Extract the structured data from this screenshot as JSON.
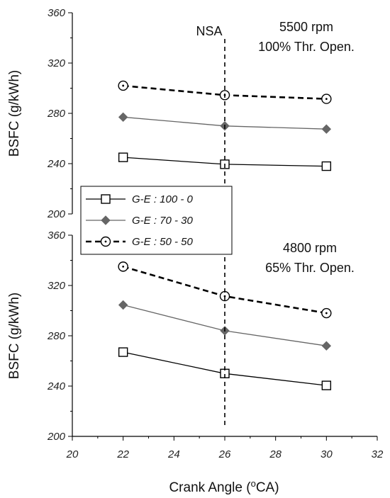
{
  "chart_data": [
    {
      "type": "line",
      "panel": "top",
      "annotation_lines": [
        "5500 rpm",
        "100% Thr. Open."
      ],
      "ylabel": "BSFC (g/kWh)",
      "ylim": [
        200,
        360
      ],
      "yticks": [
        200,
        240,
        280,
        320,
        360
      ],
      "xlim": [
        20,
        32
      ],
      "x": [
        22,
        26,
        30
      ],
      "series": [
        {
          "name": "G-E : 100 - 0",
          "values": [
            245,
            239.5,
            238
          ],
          "color": "#000000",
          "marker": "open-square",
          "line": "solid-thin"
        },
        {
          "name": "G-E : 70 - 30",
          "values": [
            277,
            270,
            267.5
          ],
          "color": "#666666",
          "marker": "filled-diamond",
          "line": "solid-thin"
        },
        {
          "name": "G-E : 50 - 50",
          "values": [
            302,
            294.5,
            291.5
          ],
          "color": "#000000",
          "marker": "open-circle-dot",
          "line": "dashed-thick"
        }
      ],
      "vline": {
        "x": 26,
        "label": "NSA"
      }
    },
    {
      "type": "line",
      "panel": "bottom",
      "annotation_lines": [
        "4800 rpm",
        "65% Thr. Open."
      ],
      "ylabel": "BSFC (g/kWh)",
      "ylim": [
        200,
        360
      ],
      "yticks": [
        200,
        240,
        280,
        320,
        360
      ],
      "xlim": [
        20,
        32
      ],
      "xticks": [
        20,
        22,
        24,
        26,
        28,
        30,
        32
      ],
      "xlabel": "Crank Angle (",
      "xlabel_sup": "o",
      "xlabel_tail": "CA)",
      "x": [
        22,
        26,
        30
      ],
      "series": [
        {
          "name": "G-E : 100 - 0",
          "values": [
            267,
            250,
            240.5
          ],
          "color": "#000000",
          "marker": "open-square",
          "line": "solid-thin"
        },
        {
          "name": "G-E : 70 - 30",
          "values": [
            304.5,
            284,
            272
          ],
          "color": "#666666",
          "marker": "filled-diamond",
          "line": "solid-thin"
        },
        {
          "name": "G-E : 50 - 50",
          "values": [
            335,
            311.5,
            298
          ],
          "color": "#000000",
          "marker": "open-circle-dot",
          "line": "dashed-thick"
        }
      ],
      "vline": {
        "x": 26
      }
    }
  ],
  "legend": {
    "placement": "left, between panels",
    "entries": [
      "G-E : 100 - 0",
      "G-E : 70 - 30",
      "G-E : 50 - 50"
    ]
  }
}
